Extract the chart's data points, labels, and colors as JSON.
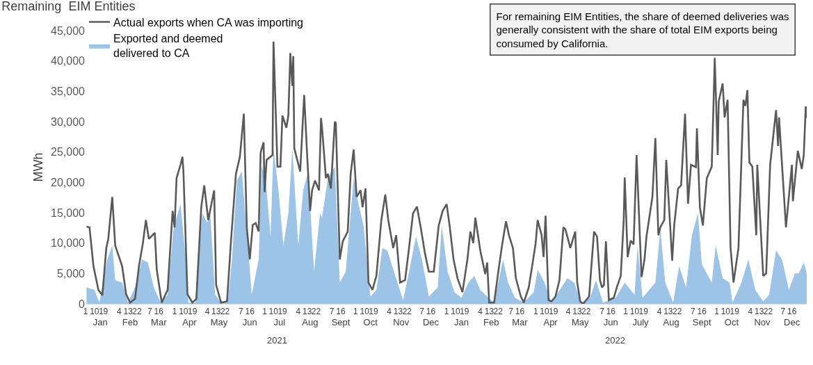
{
  "chart_data": {
    "type": "area",
    "title": "Remaining  EIM Entities",
    "ylabel": "MWh",
    "annotations": [
      "2021",
      "2022",
      "For remaining EIM Entities, the share of deemed deliveries was\ngenerally consistent with the share of total EIM exports being\nconsumed by California."
    ],
    "ylim": [
      0,
      45000
    ],
    "yticks": [
      0,
      {
        "value": 5000,
        "label": "5,000"
      },
      {
        "value": 10000,
        "label": "10,000"
      },
      {
        "value": 15000,
        "label": "15,000"
      },
      {
        "value": 20000,
        "label": "20,000"
      },
      {
        "value": 25000,
        "label": "25,000"
      },
      {
        "value": 30000,
        "label": "30,000"
      },
      {
        "value": 35000,
        "label": "35,000"
      },
      {
        "value": 40000,
        "label": "40,000"
      },
      {
        "value": 45000,
        "label": "45,000"
      }
    ],
    "xlim": [
      "2021-01-01",
      "2022-12-31"
    ],
    "xticks": [
      {
        "value": "2021-01-01",
        "label": "1"
      },
      {
        "value": "2021-01-10",
        "label": "10"
      },
      {
        "value": "2021-01-19",
        "label": "19"
      },
      {
        "value": "2021-02-04",
        "label": "4"
      },
      {
        "value": "2021-02-13",
        "label": "13"
      },
      {
        "value": "2021-02-22",
        "label": "22"
      },
      {
        "value": "2021-03-07",
        "label": "7"
      },
      {
        "value": "2021-03-16",
        "label": "16"
      },
      {
        "value": "2021-04-01",
        "label": "1"
      },
      {
        "value": "2021-04-10",
        "label": "10"
      },
      {
        "value": "2021-04-19",
        "label": "19"
      },
      {
        "value": "2021-05-04",
        "label": "4"
      },
      {
        "value": "2021-05-13",
        "label": "13"
      },
      {
        "value": "2021-05-22",
        "label": "22"
      },
      {
        "value": "2021-06-07",
        "label": "7"
      },
      {
        "value": "2021-06-16",
        "label": "16"
      },
      {
        "value": "2021-07-01",
        "label": "1"
      },
      {
        "value": "2021-07-10",
        "label": "10"
      },
      {
        "value": "2021-07-19",
        "label": "19"
      },
      {
        "value": "2021-08-04",
        "label": "4"
      },
      {
        "value": "2021-08-13",
        "label": "13"
      },
      {
        "value": "2021-08-22",
        "label": "22"
      },
      {
        "value": "2021-09-07",
        "label": "7"
      },
      {
        "value": "2021-09-16",
        "label": "16"
      },
      {
        "value": "2021-10-01",
        "label": "1"
      },
      {
        "value": "2021-10-10",
        "label": "10"
      },
      {
        "value": "2021-10-19",
        "label": "19"
      },
      {
        "value": "2021-11-04",
        "label": "4"
      },
      {
        "value": "2021-11-13",
        "label": "13"
      },
      {
        "value": "2021-11-22",
        "label": "22"
      },
      {
        "value": "2021-12-07",
        "label": "7"
      },
      {
        "value": "2021-12-16",
        "label": "16"
      },
      {
        "value": "2022-01-01",
        "label": "1"
      },
      {
        "value": "2022-01-10",
        "label": "10"
      },
      {
        "value": "2022-01-19",
        "label": "19"
      },
      {
        "value": "2022-02-04",
        "label": "4"
      },
      {
        "value": "2022-02-13",
        "label": "13"
      },
      {
        "value": "2022-02-22",
        "label": "22"
      },
      {
        "value": "2022-03-07",
        "label": "7"
      },
      {
        "value": "2022-03-16",
        "label": "16"
      },
      {
        "value": "2022-04-01",
        "label": "1"
      },
      {
        "value": "2022-04-10",
        "label": "10"
      },
      {
        "value": "2022-04-19",
        "label": "19"
      },
      {
        "value": "2022-05-04",
        "label": "4"
      },
      {
        "value": "2022-05-13",
        "label": "13"
      },
      {
        "value": "2022-05-22",
        "label": "22"
      },
      {
        "value": "2022-06-07",
        "label": "7"
      },
      {
        "value": "2022-06-16",
        "label": "16"
      },
      {
        "value": "2022-07-01",
        "label": "1"
      },
      {
        "value": "2022-07-10",
        "label": "10"
      },
      {
        "value": "2022-07-19",
        "label": "19"
      },
      {
        "value": "2022-08-04",
        "label": "4"
      },
      {
        "value": "2022-08-13",
        "label": "13"
      },
      {
        "value": "2022-08-22",
        "label": "22"
      },
      {
        "value": "2022-09-07",
        "label": "7"
      },
      {
        "value": "2022-09-16",
        "label": "16"
      },
      {
        "value": "2022-10-01",
        "label": "1"
      },
      {
        "value": "2022-10-10",
        "label": "10"
      },
      {
        "value": "2022-10-19",
        "label": "19"
      },
      {
        "value": "2022-11-04",
        "label": "4"
      },
      {
        "value": "2022-11-13",
        "label": "13"
      },
      {
        "value": "2022-11-22",
        "label": "22"
      },
      {
        "value": "2022-12-07",
        "label": "7"
      },
      {
        "value": "2022-12-16",
        "label": "16"
      }
    ],
    "x2lim": [
      "2021-01-01",
      "2022-12-31"
    ],
    "x2ticks": [
      {
        "value": "2021-01-16",
        "label": "Jan"
      },
      {
        "value": "2021-02-15",
        "label": "Feb"
      },
      {
        "value": "2021-03-16",
        "label": "Mar"
      },
      {
        "value": "2021-04-16",
        "label": "Apr"
      },
      {
        "value": "2021-05-16",
        "label": "May"
      },
      {
        "value": "2021-06-16",
        "label": "Jun"
      },
      {
        "value": "2021-07-16",
        "label": "Jul"
      },
      {
        "value": "2021-08-16",
        "label": "Aug"
      },
      {
        "value": "2021-09-16",
        "label": "Sept"
      },
      {
        "value": "2021-10-16",
        "label": "Oct"
      },
      {
        "value": "2021-11-16",
        "label": "Nov"
      },
      {
        "value": "2021-12-16",
        "label": "Dec"
      },
      {
        "value": "2022-01-16",
        "label": "Jan"
      },
      {
        "value": "2022-02-15",
        "label": "Feb"
      },
      {
        "value": "2022-03-16",
        "label": "Mar"
      },
      {
        "value": "2022-04-16",
        "label": "Apr"
      },
      {
        "value": "2022-05-16",
        "label": "May"
      },
      {
        "value": "2022-06-16",
        "label": "Jun"
      },
      {
        "value": "2022-07-16",
        "label": "July"
      },
      {
        "value": "2022-08-16",
        "label": "Aug"
      },
      {
        "value": "2022-09-16",
        "label": "Sept"
      },
      {
        "value": "2022-10-16",
        "label": "Oct"
      },
      {
        "value": "2022-11-16",
        "label": "Nov"
      },
      {
        "value": "2022-12-16",
        "label": "Dec"
      }
    ],
    "grid": false,
    "legend": "top left",
    "series": [
      {
        "name": "Exported and deemed\ndelivered to CA",
        "color": "#9dc3e6",
        "x": [
          "2021-01-02",
          "2021-01-10",
          "2021-01-15",
          "2021-01-23",
          "2021-01-28",
          "2021-01-31",
          "2021-02-07",
          "2021-02-13",
          "2021-02-20",
          "2021-02-27",
          "2021-03-05",
          "2021-03-11",
          "2021-03-18",
          "2021-03-25",
          "2021-03-31",
          "2021-04-07",
          "2021-04-12",
          "2021-04-15",
          "2021-04-22",
          "2021-04-29",
          "2021-05-04",
          "2021-05-07",
          "2021-05-12",
          "2021-05-18",
          "2021-05-25",
          "2021-05-29",
          "2021-06-03",
          "2021-06-08",
          "2021-06-13",
          "2021-06-18",
          "2021-06-25",
          "2021-06-28",
          "2021-07-02",
          "2021-07-07",
          "2021-07-10",
          "2021-07-15",
          "2021-07-20",
          "2021-07-25",
          "2021-07-29",
          "2021-08-04",
          "2021-08-09",
          "2021-08-14",
          "2021-08-20",
          "2021-08-26",
          "2021-08-28",
          "2021-09-03",
          "2021-09-10",
          "2021-09-15",
          "2021-09-21",
          "2021-09-29",
          "2021-10-04",
          "2021-10-09",
          "2021-10-16",
          "2021-10-22",
          "2021-10-28",
          "2021-11-02",
          "2021-11-07",
          "2021-11-18",
          "2021-11-24",
          "2021-12-01",
          "2021-12-07",
          "2021-12-14",
          "2021-12-23",
          "2021-12-27",
          "2022-01-02",
          "2022-01-09",
          "2022-01-16",
          "2022-01-23",
          "2022-01-29",
          "2022-02-04",
          "2022-02-11",
          "2022-02-18",
          "2022-02-27",
          "2022-03-04",
          "2022-03-11",
          "2022-03-20",
          "2022-03-30",
          "2022-04-03",
          "2022-04-10",
          "2022-04-17",
          "2022-04-27",
          "2022-05-03",
          "2022-05-10",
          "2022-05-17",
          "2022-05-26",
          "2022-06-01",
          "2022-06-08",
          "2022-06-21",
          "2022-06-30",
          "2022-07-10",
          "2022-07-13",
          "2022-07-18",
          "2022-07-31",
          "2022-08-05",
          "2022-08-10",
          "2022-08-18",
          "2022-08-24",
          "2022-08-31",
          "2022-09-06",
          "2022-09-12",
          "2022-09-16",
          "2022-09-26",
          "2022-09-30",
          "2022-10-07",
          "2022-10-14",
          "2022-10-17",
          "2022-10-26",
          "2022-11-02",
          "2022-11-09",
          "2022-11-17",
          "2022-11-23",
          "2022-11-30",
          "2022-12-06",
          "2022-12-13",
          "2022-12-19",
          "2022-12-23",
          "2022-12-28",
          "2022-12-31"
        ],
        "values": [
          2700,
          2300,
          200,
          7300,
          9600,
          3900,
          3500,
          200,
          2700,
          7300,
          6800,
          2700,
          200,
          1500,
          12600,
          16400,
          8000,
          200,
          200,
          14900,
          13400,
          14900,
          1500,
          200,
          600,
          7300,
          20300,
          21800,
          11900,
          1500,
          7300,
          22600,
          20700,
          11100,
          25600,
          18700,
          9600,
          14900,
          25600,
          9600,
          18700,
          21800,
          5300,
          14900,
          14200,
          20700,
          22600,
          3500,
          5300,
          20700,
          16400,
          12900,
          1200,
          2300,
          9200,
          8800,
          6200,
          600,
          5300,
          11100,
          7300,
          1200,
          2700,
          12900,
          5300,
          1900,
          1000,
          3500,
          4600,
          2300,
          1200,
          200,
          7300,
          3500,
          1000,
          200,
          1900,
          5600,
          3500,
          200,
          2700,
          4200,
          3500,
          200,
          1000,
          3900,
          200,
          1000,
          3500,
          1500,
          9600,
          1000,
          3500,
          12300,
          3500,
          200,
          6200,
          2700,
          11300,
          14900,
          6500,
          3500,
          9600,
          4200,
          3500,
          200,
          3500,
          7300,
          2300,
          400,
          1500,
          8800,
          7300,
          2300,
          5000,
          5000,
          6800,
          5000
        ]
      },
      {
        "name": "Actual exports when CA was importing",
        "type": "line",
        "color": "#595959",
        "x": [
          "2021-01-02",
          "2021-01-05",
          "2021-01-09",
          "2021-01-14",
          "2021-01-18",
          "2021-01-22",
          "2021-01-24",
          "2021-01-28",
          "2021-01-31",
          "2021-02-07",
          "2021-02-11",
          "2021-02-15",
          "2021-02-20",
          "2021-02-24",
          "2021-02-28",
          "2021-03-03",
          "2021-03-06",
          "2021-03-12",
          "2021-03-14",
          "2021-03-19",
          "2021-03-25",
          "2021-03-30",
          "2021-04-01",
          "2021-04-03",
          "2021-04-07",
          "2021-04-09",
          "2021-04-10",
          "2021-04-14",
          "2021-04-19",
          "2021-04-23",
          "2021-04-28",
          "2021-05-01",
          "2021-05-05",
          "2021-05-11",
          "2021-05-13",
          "2021-05-18",
          "2021-05-24",
          "2021-05-28",
          "2021-06-02",
          "2021-06-06",
          "2021-06-10",
          "2021-06-13",
          "2021-06-16",
          "2021-06-19",
          "2021-06-22",
          "2021-06-25",
          "2021-06-27",
          "2021-06-30",
          "2021-07-01",
          "2021-07-03",
          "2021-07-09",
          "2021-07-10",
          "2021-07-14",
          "2021-07-17",
          "2021-07-19",
          "2021-07-23",
          "2021-07-25",
          "2021-07-27",
          "2021-07-29",
          "2021-07-30",
          "2021-07-31",
          "2021-08-06",
          "2021-08-10",
          "2021-08-13",
          "2021-08-16",
          "2021-08-18",
          "2021-08-21",
          "2021-08-25",
          "2021-08-27",
          "2021-08-28",
          "2021-09-01",
          "2021-09-03",
          "2021-09-06",
          "2021-09-10",
          "2021-09-11",
          "2021-09-15",
          "2021-09-18",
          "2021-09-23",
          "2021-09-26",
          "2021-09-29",
          "2021-10-02",
          "2021-10-06",
          "2021-10-08",
          "2021-10-11",
          "2021-10-14",
          "2021-10-18",
          "2021-10-22",
          "2021-10-27",
          "2021-10-31",
          "2021-11-03",
          "2021-11-08",
          "2021-11-11",
          "2021-11-15",
          "2021-11-20",
          "2021-11-24",
          "2021-11-28",
          "2021-12-02",
          "2021-12-06",
          "2021-12-10",
          "2021-12-14",
          "2021-12-19",
          "2021-12-24",
          "2021-12-28",
          "2022-01-01",
          "2022-01-04",
          "2022-01-08",
          "2022-01-12",
          "2022-01-17",
          "2022-01-22",
          "2022-01-25",
          "2022-01-28",
          "2022-01-30",
          "2022-02-04",
          "2022-02-09",
          "2022-02-11",
          "2022-02-13",
          "2022-02-18",
          "2022-02-23",
          "2022-02-26",
          "2022-03-02",
          "2022-03-05",
          "2022-03-09",
          "2022-03-12",
          "2022-03-17",
          "2022-03-20",
          "2022-03-25",
          "2022-03-29",
          "2022-04-01",
          "2022-04-03",
          "2022-04-07",
          "2022-04-09",
          "2022-04-11",
          "2022-04-14",
          "2022-04-17",
          "2022-04-21",
          "2022-04-25",
          "2022-04-29",
          "2022-05-01",
          "2022-05-03",
          "2022-05-06",
          "2022-05-11",
          "2022-05-13",
          "2022-05-16",
          "2022-05-19",
          "2022-05-25",
          "2022-05-30",
          "2022-06-02",
          "2022-06-05",
          "2022-06-07",
          "2022-06-09",
          "2022-06-11",
          "2022-06-14",
          "2022-06-19",
          "2022-06-22",
          "2022-06-26",
          "2022-06-29",
          "2022-06-30",
          "2022-07-03",
          "2022-07-06",
          "2022-07-09",
          "2022-07-12",
          "2022-07-17",
          "2022-07-20",
          "2022-07-22",
          "2022-07-28",
          "2022-07-31",
          "2022-08-03",
          "2022-08-05",
          "2022-08-09",
          "2022-08-11",
          "2022-08-17",
          "2022-08-19",
          "2022-08-23",
          "2022-08-26",
          "2022-08-30",
          "2022-09-02",
          "2022-09-05",
          "2022-09-10",
          "2022-09-11",
          "2022-09-14",
          "2022-09-17",
          "2022-09-21",
          "2022-09-26",
          "2022-09-28",
          "2022-09-29",
          "2022-10-02",
          "2022-10-03",
          "2022-10-07",
          "2022-10-09",
          "2022-10-12",
          "2022-10-15",
          "2022-10-18",
          "2022-10-23",
          "2022-10-28",
          "2022-10-30",
          "2022-11-01",
          "2022-11-03",
          "2022-11-06",
          "2022-11-10",
          "2022-11-11",
          "2022-11-17",
          "2022-11-20",
          "2022-11-24",
          "2022-11-30",
          "2022-12-02",
          "2022-12-03",
          "2022-12-10",
          "2022-12-16",
          "2022-12-17",
          "2022-12-22",
          "2022-12-26",
          "2022-12-28",
          "2022-12-30",
          "2022-12-31"
        ],
        "values": [
          12700,
          12600,
          6200,
          2300,
          1400,
          9200,
          10700,
          17600,
          9600,
          6200,
          1600,
          200,
          800,
          6200,
          10000,
          13800,
          10700,
          11700,
          5600,
          200,
          2300,
          15300,
          12600,
          20700,
          22900,
          24200,
          21600,
          1600,
          200,
          800,
          16000,
          19500,
          13800,
          18700,
          3100,
          200,
          400,
          10300,
          21400,
          24200,
          31300,
          12600,
          7300,
          13000,
          13300,
          11900,
          24900,
          26600,
          18400,
          23700,
          24500,
          43200,
          22600,
          22600,
          31000,
          29000,
          31000,
          41300,
          35900,
          40800,
          25600,
          21800,
          34400,
          24500,
          15300,
          18700,
          20300,
          18700,
          30600,
          29100,
          20700,
          21400,
          19000,
          30000,
          29800,
          7300,
          10300,
          11900,
          21400,
          25400,
          17600,
          18700,
          15900,
          19000,
          3500,
          2300,
          4600,
          13800,
          18000,
          13800,
          9200,
          11300,
          3500,
          3900,
          9200,
          14900,
          16000,
          12400,
          8400,
          5300,
          5300,
          12900,
          15300,
          16400,
          12900,
          7300,
          4200,
          1900,
          7300,
          11900,
          10000,
          14200,
          8800,
          4900,
          6800,
          200,
          200,
          6200,
          9600,
          13600,
          11300,
          9200,
          4200,
          1200,
          200,
          2700,
          6800,
          10000,
          13800,
          11300,
          7700,
          14500,
          600,
          400,
          1200,
          3900,
          12600,
          12300,
          11100,
          9200,
          11900,
          3500,
          400,
          0,
          1200,
          11900,
          11100,
          3900,
          2700,
          3100,
          10300,
          600,
          1000,
          2700,
          4600,
          13800,
          20800,
          7700,
          10400,
          9800,
          24500,
          4400,
          7300,
          11100,
          17600,
          27300,
          11300,
          12600,
          13800,
          23700,
          7100,
          12900,
          19000,
          19500,
          31300,
          16500,
          22900,
          22500,
          28900,
          15900,
          12900,
          20700,
          22600,
          34400,
          40500,
          24500,
          33300,
          36300,
          30700,
          33600,
          9200,
          3500,
          9200,
          33600,
          32600,
          35200,
          23300,
          22600,
          11300,
          22900,
          4600,
          5000,
          22900,
          31900,
          26000,
          30700,
          12600,
          22900,
          16900,
          25200,
          22200,
          24500,
          32500,
          30600
        ]
      }
    ]
  }
}
